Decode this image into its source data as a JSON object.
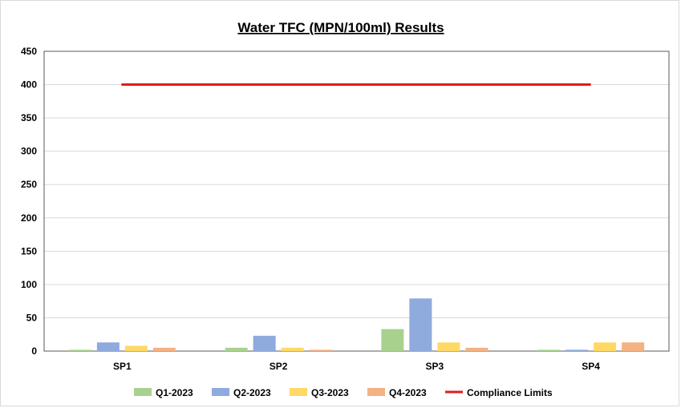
{
  "chart_data": {
    "type": "bar",
    "title": "Water TFC (MPN/100ml) Results",
    "xlabel": "",
    "ylabel": "",
    "ylim": [
      0,
      450
    ],
    "yticks": [
      "0",
      "50",
      "100",
      "150",
      "200",
      "250",
      "300",
      "350",
      "400",
      "450"
    ],
    "grid": true,
    "legend_position": "bottom",
    "categories": [
      "SP1",
      "SP2",
      "SP3",
      "SP4"
    ],
    "series": [
      {
        "name": "Q1-2023",
        "color": "#a9d18e",
        "values": [
          2,
          5,
          33,
          2
        ]
      },
      {
        "name": "Q2-2023",
        "color": "#8faadc",
        "values": [
          13,
          23,
          79,
          2
        ]
      },
      {
        "name": "Q3-2023",
        "color": "#ffd966",
        "values": [
          8,
          5,
          13,
          13
        ]
      },
      {
        "name": "Q4-2023",
        "color": "#f4b183",
        "values": [
          5,
          2,
          5,
          13
        ]
      }
    ],
    "lines": [
      {
        "name": "Compliance Limits",
        "color": "#e31a1c",
        "value": 400
      }
    ]
  }
}
